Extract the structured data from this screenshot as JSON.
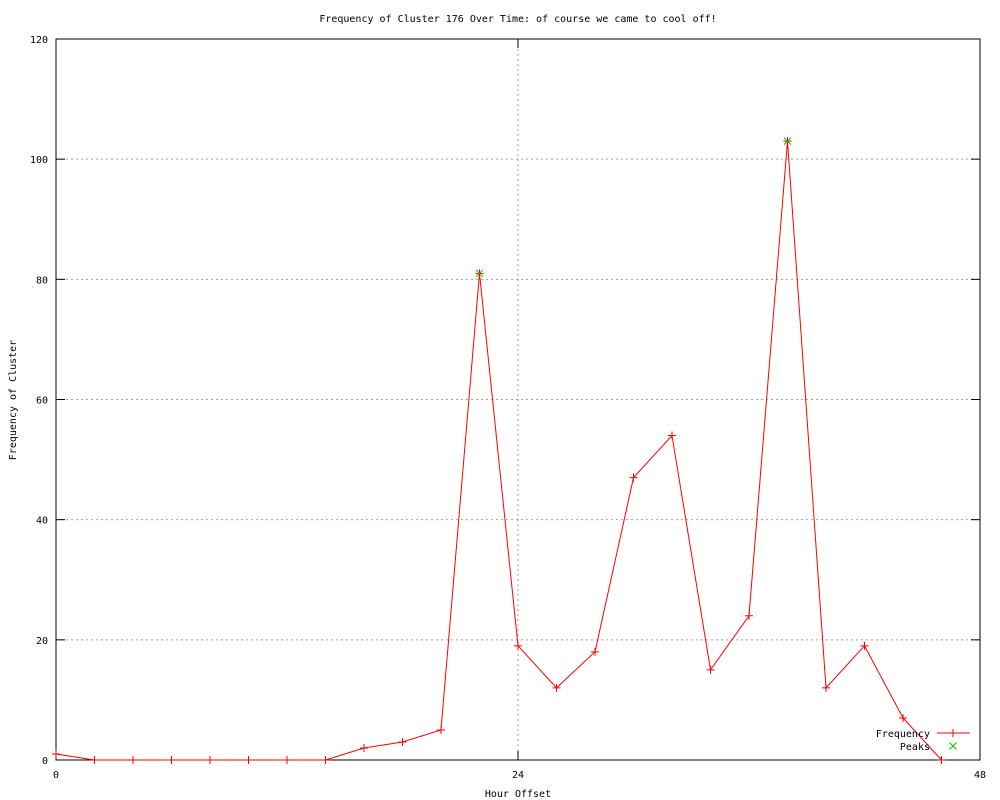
{
  "chart_data": {
    "type": "line",
    "title": "Frequency of Cluster 176 Over Time: of course we came to cool off!",
    "xlabel": "Hour Offset",
    "ylabel": "Frequency of Cluster",
    "xlim": [
      0,
      48
    ],
    "ylim": [
      0,
      120
    ],
    "xticks": [
      0,
      24,
      48
    ],
    "yticks": [
      0,
      20,
      40,
      60,
      80,
      100,
      120
    ],
    "grid": true,
    "legend_position": "bottom-right",
    "series": [
      {
        "name": "Frequency",
        "color": "#ff0000",
        "marker": "plus",
        "x": [
          0,
          2,
          4,
          6,
          8,
          10,
          12,
          14,
          16,
          18,
          20,
          22,
          24,
          26,
          28,
          30,
          32,
          34,
          36,
          38,
          40,
          42,
          44,
          46
        ],
        "y": [
          1,
          0,
          0,
          0,
          0,
          0,
          0,
          0,
          2,
          3,
          5,
          81,
          19,
          12,
          18,
          47,
          54,
          15,
          24,
          103,
          12,
          19,
          7,
          0
        ]
      },
      {
        "name": "Peaks",
        "color": "#00c000",
        "marker": "cross",
        "x": [
          22,
          38
        ],
        "y": [
          81,
          103
        ]
      }
    ]
  }
}
